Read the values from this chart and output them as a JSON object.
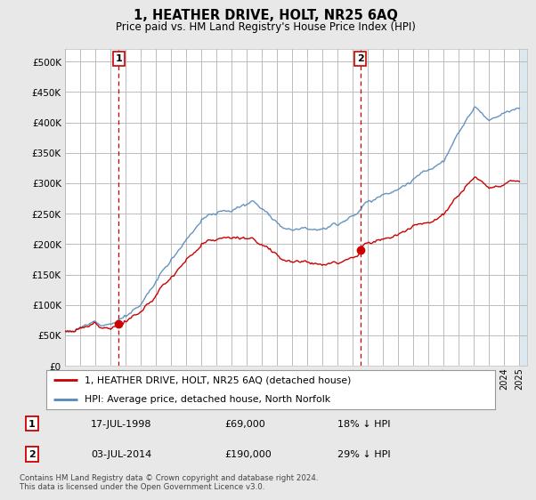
{
  "title": "1, HEATHER DRIVE, HOLT, NR25 6AQ",
  "subtitle": "Price paid vs. HM Land Registry's House Price Index (HPI)",
  "legend_label_red": "1, HEATHER DRIVE, HOLT, NR25 6AQ (detached house)",
  "legend_label_blue": "HPI: Average price, detached house, North Norfolk",
  "annotation1_label": "1",
  "annotation1_date": "17-JUL-1998",
  "annotation1_price": "£69,000",
  "annotation1_hpi": "18% ↓ HPI",
  "annotation1_year": 1998.54,
  "annotation1_value": 69000,
  "annotation2_label": "2",
  "annotation2_date": "03-JUL-2014",
  "annotation2_price": "£190,000",
  "annotation2_hpi": "29% ↓ HPI",
  "annotation2_year": 2014.5,
  "annotation2_value": 190000,
  "footer": "Contains HM Land Registry data © Crown copyright and database right 2024.\nThis data is licensed under the Open Government Licence v3.0.",
  "ylim": [
    0,
    520000
  ],
  "yticks": [
    0,
    50000,
    100000,
    150000,
    200000,
    250000,
    300000,
    350000,
    400000,
    450000,
    500000
  ],
  "background_color": "#e8e8e8",
  "plot_bg_color": "#dce8f0",
  "plot_inner_color": "#ffffff",
  "red_color": "#cc0000",
  "blue_color": "#5588bb",
  "grid_color": "#bbbbbb",
  "hpi_seed": 12,
  "price_seed": 7
}
